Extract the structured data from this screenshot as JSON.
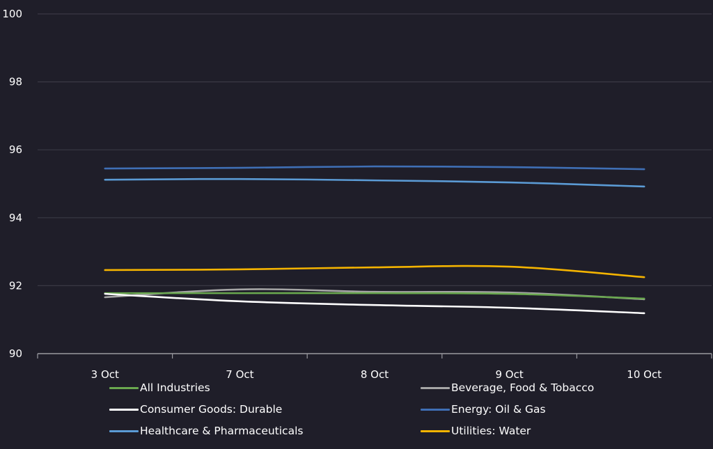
{
  "chart_data": {
    "type": "line",
    "title": "",
    "xlabel": "",
    "ylabel": "",
    "ylim": [
      90,
      100
    ],
    "yticks": [
      90,
      92,
      94,
      96,
      98,
      100
    ],
    "grid": true,
    "legend_position": "bottom",
    "categories": [
      "3 Oct",
      "7 Oct",
      "8 Oct",
      "9 Oct",
      "10 Oct"
    ],
    "series": [
      {
        "name": "All Industries",
        "color": "#6aa84f",
        "values": [
          91.78,
          91.78,
          91.78,
          91.76,
          91.62
        ]
      },
      {
        "name": "Beverage, Food & Tobacco",
        "color": "#a6a6a6",
        "values": [
          91.66,
          91.89,
          91.82,
          91.8,
          91.6
        ]
      },
      {
        "name": "Consumer Goods: Durable",
        "color": "#ffffff",
        "values": [
          91.76,
          91.54,
          91.43,
          91.35,
          91.19
        ]
      },
      {
        "name": "Energy: Oil & Gas",
        "color": "#3f6fb5",
        "values": [
          95.45,
          95.47,
          95.51,
          95.49,
          95.43
        ]
      },
      {
        "name": "Healthcare & Pharmaceuticals",
        "color": "#5b9bd5",
        "values": [
          95.12,
          95.14,
          95.1,
          95.04,
          94.92
        ]
      },
      {
        "name": "Utilities: Water",
        "color": "#f5b400",
        "values": [
          92.46,
          92.48,
          92.54,
          92.56,
          92.25
        ]
      }
    ]
  }
}
